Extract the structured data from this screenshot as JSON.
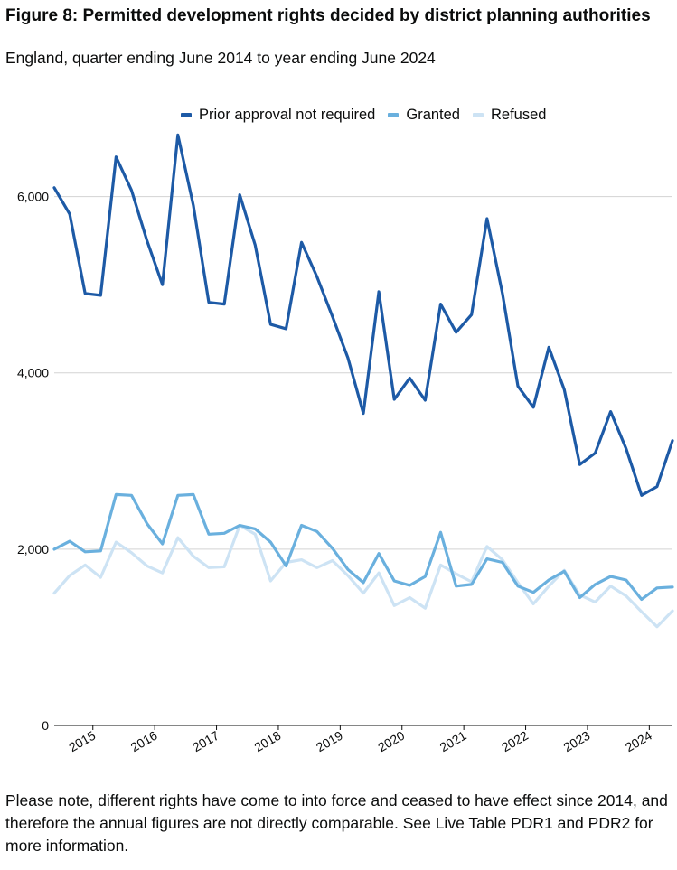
{
  "figure": {
    "title": "Figure 8: Permitted development rights decided by district planning authorities",
    "subtitle": "England, quarter ending June 2014 to year ending June 2024",
    "footnote": "Please note, different rights have come to into force and ceased to have effect since 2014, and therefore the annual figures are not directly comparable. See Live Table PDR1 and PDR2 for more information."
  },
  "chart_data": {
    "type": "line",
    "title": "Figure 8: Permitted development rights decided by district planning authorities",
    "subtitle": "England, quarter ending June 2014 to year ending June 2024",
    "xlabel": "",
    "ylabel": "",
    "ylim": [
      0,
      7000
    ],
    "yticks": [
      0,
      2000,
      4000,
      6000
    ],
    "ytick_labels": [
      "0",
      "2,000",
      "4,000",
      "6,000"
    ],
    "grid": true,
    "legend_position": "top",
    "x": [
      "2014 Q2",
      "2014 Q3",
      "2014 Q4",
      "2015 Q1",
      "2015 Q2",
      "2015 Q3",
      "2015 Q4",
      "2016 Q1",
      "2016 Q2",
      "2016 Q3",
      "2016 Q4",
      "2017 Q1",
      "2017 Q2",
      "2017 Q3",
      "2017 Q4",
      "2018 Q1",
      "2018 Q2",
      "2018 Q3",
      "2018 Q4",
      "2019 Q1",
      "2019 Q2",
      "2019 Q3",
      "2019 Q4",
      "2020 Q1",
      "2020 Q2",
      "2020 Q3",
      "2020 Q4",
      "2021 Q1",
      "2021 Q2",
      "2021 Q3",
      "2021 Q4",
      "2022 Q1",
      "2022 Q2",
      "2022 Q3",
      "2022 Q4",
      "2023 Q1",
      "2023 Q2",
      "2023 Q3",
      "2023 Q4",
      "2024 Q1",
      "2024 Q2"
    ],
    "x_tick_labels": [
      {
        "label": "2015",
        "index": 2.5
      },
      {
        "label": "2016",
        "index": 6.5
      },
      {
        "label": "2017",
        "index": 10.5
      },
      {
        "label": "2018",
        "index": 14.5
      },
      {
        "label": "2019",
        "index": 18.5
      },
      {
        "label": "2020",
        "index": 22.5
      },
      {
        "label": "2021",
        "index": 26.5
      },
      {
        "label": "2022",
        "index": 30.5
      },
      {
        "label": "2023",
        "index": 34.5
      },
      {
        "label": "2024",
        "index": 38.5
      }
    ],
    "series": [
      {
        "name": "Prior approval not required",
        "color": "#1d5aa6",
        "values": [
          6100,
          5800,
          4900,
          4880,
          6450,
          6070,
          5500,
          5000,
          6700,
          5900,
          4800,
          4780,
          6020,
          5450,
          4550,
          4500,
          5480,
          5090,
          4640,
          4170,
          3540,
          4920,
          3700,
          3940,
          3690,
          4780,
          4460,
          4660,
          5750,
          4900,
          3850,
          3610,
          4290,
          3810,
          2960,
          3090,
          3560,
          3140,
          2610,
          2710,
          3230
        ]
      },
      {
        "name": "Granted",
        "color": "#6ab0de",
        "values": [
          2000,
          2090,
          1970,
          1980,
          2620,
          2610,
          2290,
          2060,
          2610,
          2620,
          2170,
          2180,
          2270,
          2230,
          2080,
          1810,
          2270,
          2200,
          2010,
          1770,
          1620,
          1950,
          1640,
          1590,
          1690,
          2190,
          1580,
          1600,
          1890,
          1850,
          1580,
          1510,
          1650,
          1750,
          1450,
          1600,
          1690,
          1650,
          1430,
          1560,
          1570
        ]
      },
      {
        "name": "Refused",
        "color": "#cde3f4",
        "values": [
          1500,
          1700,
          1820,
          1680,
          2080,
          1960,
          1810,
          1730,
          2130,
          1920,
          1790,
          1800,
          2270,
          2170,
          1640,
          1850,
          1880,
          1790,
          1870,
          1700,
          1500,
          1730,
          1360,
          1450,
          1330,
          1820,
          1720,
          1630,
          2030,
          1880,
          1620,
          1380,
          1580,
          1760,
          1480,
          1400,
          1580,
          1470,
          1290,
          1120,
          1300
        ]
      }
    ]
  }
}
